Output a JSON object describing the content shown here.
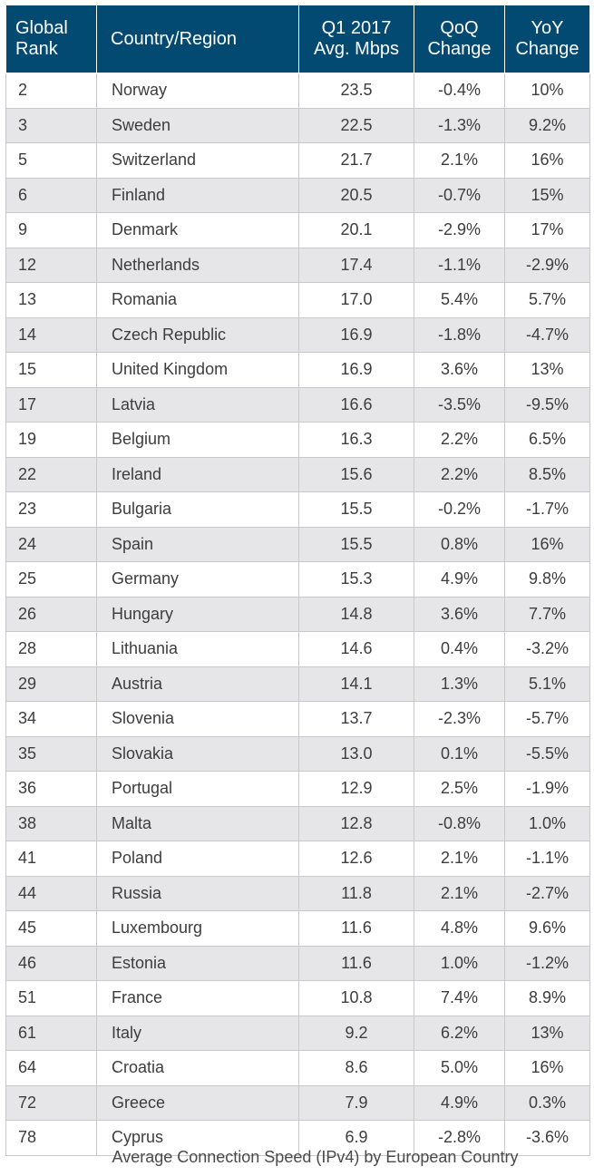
{
  "chart_data": {
    "type": "table",
    "title": "Average Connection Speed (IPv4) by European Country",
    "columns": [
      {
        "key": "rank",
        "lines": [
          "Global",
          "Rank"
        ]
      },
      {
        "key": "country",
        "lines": [
          "Country/Region"
        ]
      },
      {
        "key": "speed",
        "lines": [
          "Q1 2017",
          "Avg. Mbps"
        ]
      },
      {
        "key": "qoq",
        "lines": [
          "QoQ",
          "Change"
        ]
      },
      {
        "key": "yoy",
        "lines": [
          "YoY",
          "Change"
        ]
      }
    ],
    "rows": [
      {
        "rank": "2",
        "country": "Norway",
        "speed": "23.5",
        "qoq": "-0.4%",
        "yoy": "10%"
      },
      {
        "rank": "3",
        "country": "Sweden",
        "speed": "22.5",
        "qoq": "-1.3%",
        "yoy": "9.2%"
      },
      {
        "rank": "5",
        "country": "Switzerland",
        "speed": "21.7",
        "qoq": "2.1%",
        "yoy": "16%"
      },
      {
        "rank": "6",
        "country": "Finland",
        "speed": "20.5",
        "qoq": "-0.7%",
        "yoy": "15%"
      },
      {
        "rank": "9",
        "country": "Denmark",
        "speed": "20.1",
        "qoq": "-2.9%",
        "yoy": "17%"
      },
      {
        "rank": "12",
        "country": "Netherlands",
        "speed": "17.4",
        "qoq": "-1.1%",
        "yoy": "-2.9%"
      },
      {
        "rank": "13",
        "country": "Romania",
        "speed": "17.0",
        "qoq": "5.4%",
        "yoy": "5.7%"
      },
      {
        "rank": "14",
        "country": "Czech Republic",
        "speed": "16.9",
        "qoq": "-1.8%",
        "yoy": "-4.7%"
      },
      {
        "rank": "15",
        "country": "United Kingdom",
        "speed": "16.9",
        "qoq": "3.6%",
        "yoy": "13%"
      },
      {
        "rank": "17",
        "country": "Latvia",
        "speed": "16.6",
        "qoq": "-3.5%",
        "yoy": "-9.5%"
      },
      {
        "rank": "19",
        "country": "Belgium",
        "speed": "16.3",
        "qoq": "2.2%",
        "yoy": "6.5%"
      },
      {
        "rank": "22",
        "country": "Ireland",
        "speed": "15.6",
        "qoq": "2.2%",
        "yoy": "8.5%"
      },
      {
        "rank": "23",
        "country": "Bulgaria",
        "speed": "15.5",
        "qoq": "-0.2%",
        "yoy": "-1.7%"
      },
      {
        "rank": "24",
        "country": "Spain",
        "speed": "15.5",
        "qoq": "0.8%",
        "yoy": "16%"
      },
      {
        "rank": "25",
        "country": "Germany",
        "speed": "15.3",
        "qoq": "4.9%",
        "yoy": "9.8%"
      },
      {
        "rank": "26",
        "country": "Hungary",
        "speed": "14.8",
        "qoq": "3.6%",
        "yoy": "7.7%"
      },
      {
        "rank": "28",
        "country": "Lithuania",
        "speed": "14.6",
        "qoq": "0.4%",
        "yoy": "-3.2%"
      },
      {
        "rank": "29",
        "country": "Austria",
        "speed": "14.1",
        "qoq": "1.3%",
        "yoy": "5.1%"
      },
      {
        "rank": "34",
        "country": "Slovenia",
        "speed": "13.7",
        "qoq": "-2.3%",
        "yoy": "-5.7%"
      },
      {
        "rank": "35",
        "country": "Slovakia",
        "speed": "13.0",
        "qoq": "0.1%",
        "yoy": "-5.5%"
      },
      {
        "rank": "36",
        "country": "Portugal",
        "speed": "12.9",
        "qoq": "2.5%",
        "yoy": "-1.9%"
      },
      {
        "rank": "38",
        "country": "Malta",
        "speed": "12.8",
        "qoq": "-0.8%",
        "yoy": "1.0%"
      },
      {
        "rank": "41",
        "country": "Poland",
        "speed": "12.6",
        "qoq": "2.1%",
        "yoy": "-1.1%"
      },
      {
        "rank": "44",
        "country": "Russia",
        "speed": "11.8",
        "qoq": "2.1%",
        "yoy": "-2.7%"
      },
      {
        "rank": "45",
        "country": "Luxembourg",
        "speed": "11.6",
        "qoq": "4.8%",
        "yoy": "9.6%"
      },
      {
        "rank": "46",
        "country": "Estonia",
        "speed": "11.6",
        "qoq": "1.0%",
        "yoy": "-1.2%"
      },
      {
        "rank": "51",
        "country": "France",
        "speed": "10.8",
        "qoq": "7.4%",
        "yoy": "8.9%"
      },
      {
        "rank": "61",
        "country": "Italy",
        "speed": "9.2",
        "qoq": "6.2%",
        "yoy": "13%"
      },
      {
        "rank": "64",
        "country": "Croatia",
        "speed": "8.6",
        "qoq": "5.0%",
        "yoy": "16%"
      },
      {
        "rank": "72",
        "country": "Greece",
        "speed": "7.9",
        "qoq": "4.9%",
        "yoy": "0.3%"
      },
      {
        "rank": "78",
        "country": "Cyprus",
        "speed": "6.9",
        "qoq": "-2.8%",
        "yoy": "-3.6%"
      }
    ]
  },
  "colors": {
    "header_bg": "#034a72",
    "header_text": "#ffffff",
    "row_alt": "#e6e6e8",
    "grid": "#c9c9c9"
  }
}
